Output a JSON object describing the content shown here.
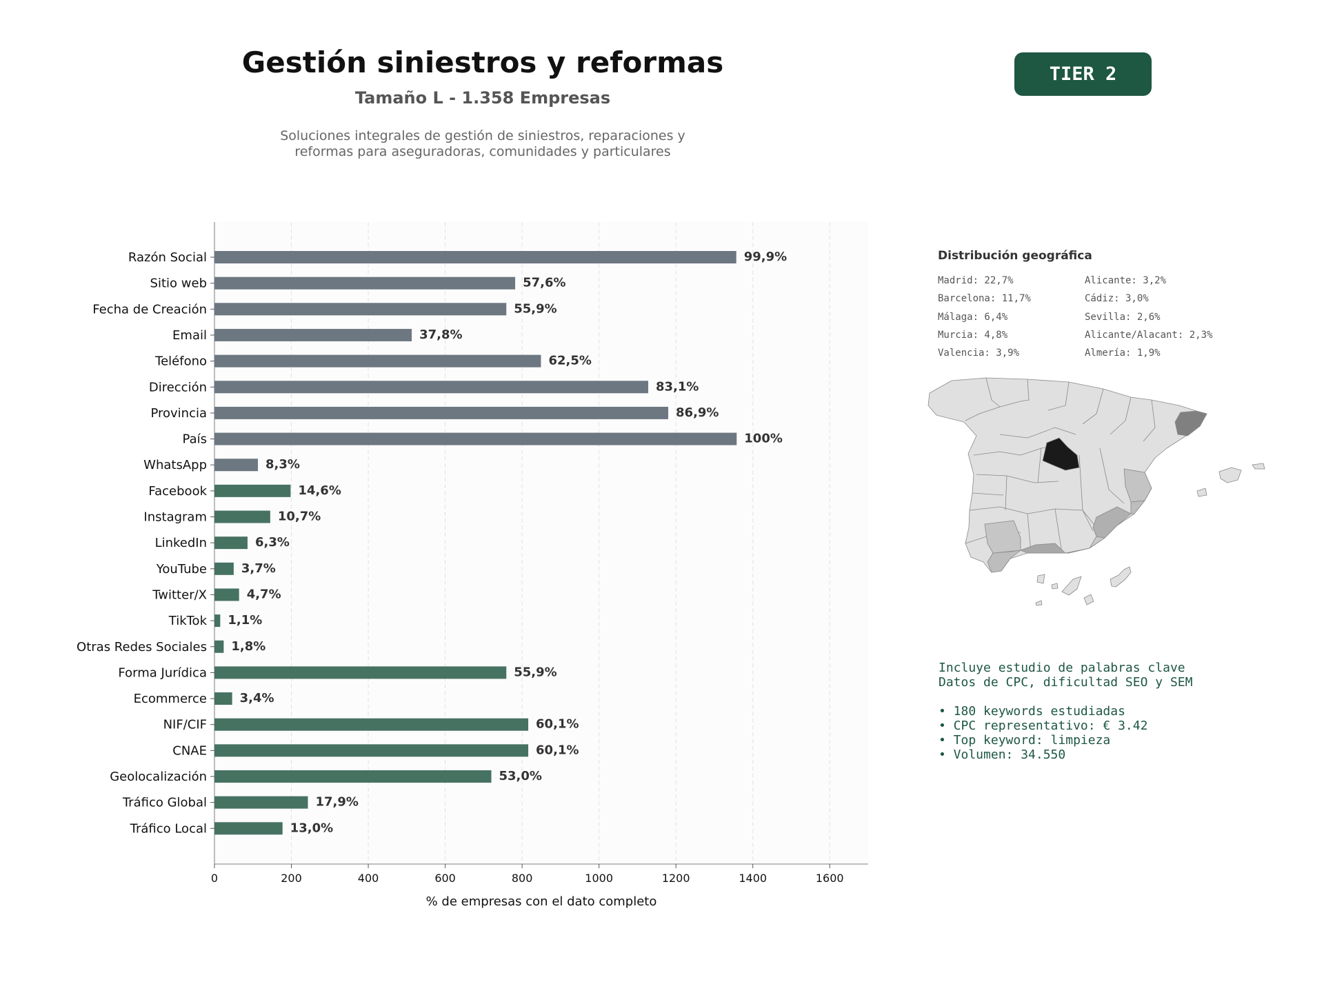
{
  "header": {
    "title": "Gestión siniestros y reformas",
    "subtitle": "Tamaño L - 1.358 Empresas",
    "description_line1": "Soluciones integrales de gestión de siniestros, reparaciones y",
    "description_line2": "reformas para aseguradoras, comunidades y particulares",
    "tier_label": "TIER 2"
  },
  "chart_data": {
    "type": "bar",
    "orientation": "horizontal",
    "xlabel": "% de empresas con el dato completo",
    "ylabel": "",
    "xlim": [
      0,
      1700
    ],
    "xticks": [
      0,
      200,
      400,
      600,
      800,
      1000,
      1200,
      1400,
      1600
    ],
    "grid": true,
    "categories": [
      "Razón Social",
      "Sitio web",
      "Fecha de Creación",
      "Email",
      "Teléfono",
      "Dirección",
      "Provincia",
      "País",
      "WhatsApp",
      "Facebook",
      "Instagram",
      "LinkedIn",
      "YouTube",
      "Twitter/X",
      "TikTok",
      "Otras Redes Sociales",
      "Forma Jurídica",
      "Ecommerce",
      "NIF/CIF",
      "CNAE",
      "Geolocalización",
      "Tráfico Global",
      "Tráfico Local"
    ],
    "values": [
      1357,
      782,
      759,
      513,
      849,
      1128,
      1180,
      1358,
      113,
      198,
      145,
      86,
      50,
      64,
      15,
      24,
      759,
      46,
      816,
      816,
      720,
      243,
      177
    ],
    "labels": [
      "99,9%",
      "57,6%",
      "55,9%",
      "37,8%",
      "62,5%",
      "83,1%",
      "86,9%",
      "100%",
      "8,3%",
      "14,6%",
      "10,7%",
      "6,3%",
      "3,7%",
      "4,7%",
      "1,1%",
      "1,8%",
      "55,9%",
      "3,4%",
      "60,1%",
      "60,1%",
      "53,0%",
      "17,9%",
      "13,0%"
    ],
    "bar_colors": [
      "#6c7782",
      "#6c7782",
      "#6c7782",
      "#6c7782",
      "#6c7782",
      "#6c7782",
      "#6c7782",
      "#6c7782",
      "#6c7782",
      "#467262",
      "#467262",
      "#467262",
      "#467262",
      "#467262",
      "#467262",
      "#467262",
      "#467262",
      "#467262",
      "#467262",
      "#467262",
      "#467262",
      "#467262",
      "#467262"
    ]
  },
  "geo": {
    "title": "Distribución geográfica",
    "column1": [
      "Madrid: 22,7%",
      "Barcelona: 11,7%",
      "Málaga: 6,4%",
      "Murcia: 4,8%",
      "Valencia: 3,9%"
    ],
    "column2": [
      "Alicante: 3,2%",
      "Cádiz: 3,0%",
      "Sevilla: 2,6%",
      "Alicante/Alacant: 2,3%",
      "Almería: 1,9%"
    ]
  },
  "keywords": {
    "line1": "Incluye estudio de palabras clave",
    "line2": "Datos de CPC, dificultad SEO y SEM",
    "bullets": [
      "• 180 keywords estudiadas",
      "• CPC representativo: € 3.42",
      "• Top keyword: limpieza",
      "• Volumen: 34.550"
    ]
  },
  "colors": {
    "accent": "#1e5742",
    "bar_gray": "#6c7782",
    "bar_green": "#467262"
  }
}
